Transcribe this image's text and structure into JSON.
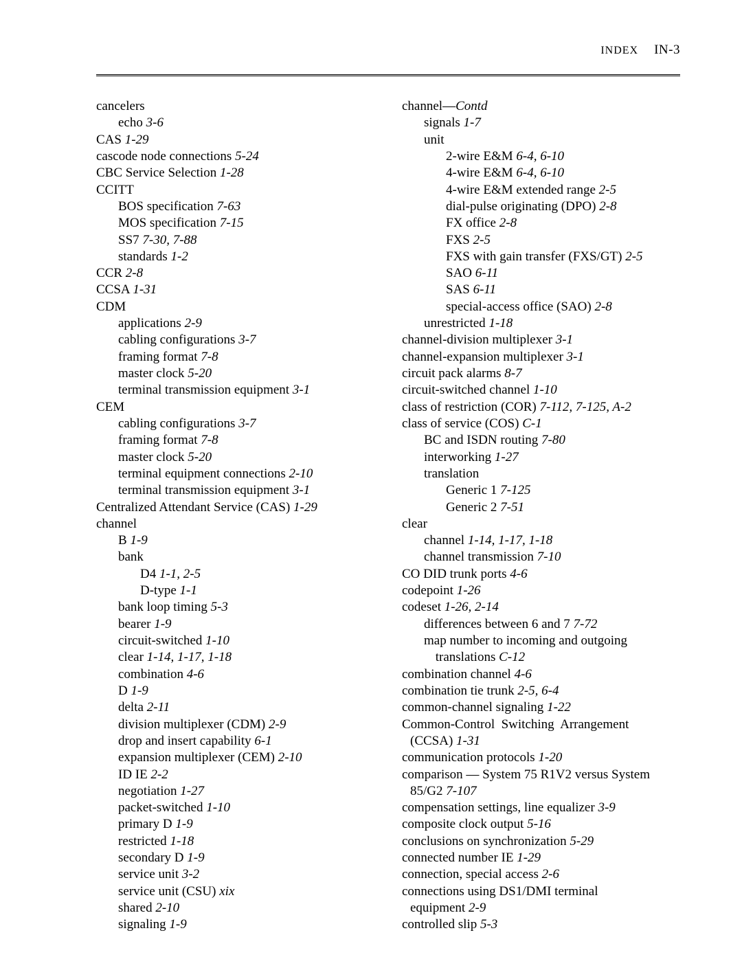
{
  "header": {
    "label": "INDEX",
    "page": "IN-3"
  },
  "left": [
    {
      "i": 0,
      "t": [
        "cancelers"
      ]
    },
    {
      "i": 1,
      "t": [
        "echo ",
        {
          "it": "3-6"
        }
      ]
    },
    {
      "i": 0,
      "t": [
        "CAS ",
        {
          "it": "1-29"
        }
      ]
    },
    {
      "i": 0,
      "t": [
        "cascode node connections ",
        {
          "it": "5-24"
        }
      ]
    },
    {
      "i": 0,
      "t": [
        "CBC Service Selection ",
        {
          "it": "1-28"
        }
      ]
    },
    {
      "i": 0,
      "t": [
        "CCITT"
      ]
    },
    {
      "i": 1,
      "t": [
        "BOS specification ",
        {
          "it": "7-63"
        }
      ]
    },
    {
      "i": 1,
      "t": [
        "MOS specification ",
        {
          "it": "7-15"
        }
      ]
    },
    {
      "i": 1,
      "t": [
        "SS7 ",
        {
          "it": "7-30, 7-88"
        }
      ]
    },
    {
      "i": 1,
      "t": [
        "standards ",
        {
          "it": "1-2"
        }
      ]
    },
    {
      "i": 0,
      "t": [
        "CCR ",
        {
          "it": "2-8"
        }
      ]
    },
    {
      "i": 0,
      "t": [
        "CCSA ",
        {
          "it": "1-31"
        }
      ]
    },
    {
      "i": 0,
      "t": [
        "CDM"
      ]
    },
    {
      "i": 1,
      "t": [
        "applications ",
        {
          "it": "2-9"
        }
      ]
    },
    {
      "i": 1,
      "t": [
        "cabling configurations ",
        {
          "it": "3-7"
        }
      ]
    },
    {
      "i": 1,
      "t": [
        "framing format ",
        {
          "it": "7-8"
        }
      ]
    },
    {
      "i": 1,
      "t": [
        "master clock ",
        {
          "it": "5-20"
        }
      ]
    },
    {
      "i": 1,
      "t": [
        "terminal transmission equipment ",
        {
          "it": "3-1"
        }
      ]
    },
    {
      "i": 0,
      "t": [
        "CEM"
      ]
    },
    {
      "i": 1,
      "t": [
        "cabling configurations ",
        {
          "it": "3-7"
        }
      ]
    },
    {
      "i": 1,
      "t": [
        "framing format ",
        {
          "it": "7-8"
        }
      ]
    },
    {
      "i": 1,
      "t": [
        "master clock ",
        {
          "it": "5-20"
        }
      ]
    },
    {
      "i": 1,
      "t": [
        "terminal equipment connections ",
        {
          "it": "2-10"
        }
      ]
    },
    {
      "i": 1,
      "t": [
        "terminal transmission equipment ",
        {
          "it": "3-1"
        }
      ]
    },
    {
      "i": 0,
      "t": [
        "Centralized Attendant Service (CAS) ",
        {
          "it": "1-29"
        }
      ]
    },
    {
      "i": 0,
      "t": [
        "channel"
      ]
    },
    {
      "i": 1,
      "t": [
        "B ",
        {
          "it": "1-9"
        }
      ]
    },
    {
      "i": 1,
      "t": [
        "bank"
      ]
    },
    {
      "i": 2,
      "t": [
        "D4 ",
        {
          "it": "1-1, 2-5"
        }
      ]
    },
    {
      "i": 2,
      "t": [
        "D-type ",
        {
          "it": "1-1"
        }
      ]
    },
    {
      "i": 1,
      "t": [
        "bank loop timing ",
        {
          "it": "5-3"
        }
      ]
    },
    {
      "i": 1,
      "t": [
        "bearer ",
        {
          "it": "1-9"
        }
      ]
    },
    {
      "i": 1,
      "t": [
        "circuit-switched ",
        {
          "it": "1-10"
        }
      ]
    },
    {
      "i": 1,
      "t": [
        "clear ",
        {
          "it": "1-14, 1-17, 1-18"
        }
      ]
    },
    {
      "i": 1,
      "t": [
        "combination ",
        {
          "it": "4-6"
        }
      ]
    },
    {
      "i": 1,
      "t": [
        "D ",
        {
          "it": "1-9"
        }
      ]
    },
    {
      "i": 1,
      "t": [
        "delta ",
        {
          "it": "2-11"
        }
      ]
    },
    {
      "i": 1,
      "t": [
        "division multiplexer (CDM) ",
        {
          "it": "2-9"
        }
      ]
    },
    {
      "i": 1,
      "t": [
        "drop and insert capability ",
        {
          "it": "6-1"
        }
      ]
    },
    {
      "i": 1,
      "t": [
        "expansion multiplexer (CEM) ",
        {
          "it": "2-10"
        }
      ]
    },
    {
      "i": 1,
      "t": [
        "ID IE ",
        {
          "it": "2-2"
        }
      ]
    },
    {
      "i": 1,
      "t": [
        "negotiation ",
        {
          "it": "1-27"
        }
      ]
    },
    {
      "i": 1,
      "t": [
        "packet-switched ",
        {
          "it": "1-10"
        }
      ]
    },
    {
      "i": 1,
      "t": [
        "primary D ",
        {
          "it": "1-9"
        }
      ]
    },
    {
      "i": 1,
      "t": [
        "restricted ",
        {
          "it": "1-18"
        }
      ]
    },
    {
      "i": 1,
      "t": [
        "secondary D ",
        {
          "it": "1-9"
        }
      ]
    },
    {
      "i": 1,
      "t": [
        "service unit ",
        {
          "it": "3-2"
        }
      ]
    },
    {
      "i": 1,
      "t": [
        "service unit (CSU) ",
        {
          "it": "xix"
        }
      ]
    },
    {
      "i": 1,
      "t": [
        "shared ",
        {
          "it": "2-10"
        }
      ]
    },
    {
      "i": 1,
      "t": [
        "signaling ",
        {
          "it": "1-9"
        }
      ]
    }
  ],
  "right": [
    {
      "i": 0,
      "t": [
        "channel—",
        {
          "it": "Contd"
        }
      ]
    },
    {
      "i": 1,
      "t": [
        "signals ",
        {
          "it": "1-7"
        }
      ]
    },
    {
      "i": 1,
      "t": [
        "unit"
      ]
    },
    {
      "i": 2,
      "t": [
        "2-wire E&M ",
        {
          "it": "6-4, 6-10"
        }
      ]
    },
    {
      "i": 2,
      "t": [
        "4-wire E&M ",
        {
          "it": "6-4, 6-10"
        }
      ]
    },
    {
      "i": 2,
      "t": [
        "4-wire E&M extended range ",
        {
          "it": "2-5"
        }
      ]
    },
    {
      "i": 2,
      "t": [
        "dial-pulse originating (DPO) ",
        {
          "it": "2-8"
        }
      ]
    },
    {
      "i": 2,
      "t": [
        "FX office ",
        {
          "it": "2-8"
        }
      ]
    },
    {
      "i": 2,
      "t": [
        "FXS ",
        {
          "it": "2-5"
        }
      ]
    },
    {
      "i": 2,
      "t": [
        "FXS with gain transfer (FXS/GT) ",
        {
          "it": "2-5"
        }
      ]
    },
    {
      "i": 2,
      "t": [
        "SAO ",
        {
          "it": "6-11"
        }
      ]
    },
    {
      "i": 2,
      "t": [
        "SAS ",
        {
          "it": "6-11"
        }
      ]
    },
    {
      "i": 2,
      "t": [
        "special-access office (SAO) ",
        {
          "it": "2-8"
        }
      ]
    },
    {
      "i": 1,
      "t": [
        "unrestricted ",
        {
          "it": "1-18"
        }
      ]
    },
    {
      "i": 0,
      "t": [
        "channel-division multiplexer ",
        {
          "it": "3-1"
        }
      ]
    },
    {
      "i": 0,
      "t": [
        "channel-expansion multiplexer ",
        {
          "it": "3-1"
        }
      ]
    },
    {
      "i": 0,
      "t": [
        "circuit pack alarms ",
        {
          "it": "8-7"
        }
      ]
    },
    {
      "i": 0,
      "t": [
        "circuit-switched channel ",
        {
          "it": "1-10"
        }
      ]
    },
    {
      "i": 0,
      "t": [
        "class of restriction (COR) ",
        {
          "it": "7-112, 7-125, A-2"
        }
      ]
    },
    {
      "i": 0,
      "t": [
        "class of service (COS) ",
        {
          "it": "C-1"
        }
      ]
    },
    {
      "i": 1,
      "t": [
        "BC and ISDN routing ",
        {
          "it": "7-80"
        }
      ]
    },
    {
      "i": 1,
      "t": [
        "interworking ",
        {
          "it": "1-27"
        }
      ]
    },
    {
      "i": 1,
      "t": [
        "translation"
      ]
    },
    {
      "i": 2,
      "t": [
        "Generic 1 ",
        {
          "it": "7-125"
        }
      ]
    },
    {
      "i": 2,
      "t": [
        "Generic 2 ",
        {
          "it": "7-51"
        }
      ]
    },
    {
      "i": 0,
      "t": [
        "clear"
      ]
    },
    {
      "i": 1,
      "t": [
        "channel ",
        {
          "it": "1-14, 1-17, 1-18"
        }
      ]
    },
    {
      "i": 1,
      "t": [
        "channel transmission ",
        {
          "it": "7-10"
        }
      ]
    },
    {
      "i": 0,
      "t": [
        "CO DID trunk ports ",
        {
          "it": "4-6"
        }
      ]
    },
    {
      "i": 0,
      "t": [
        "codepoint ",
        {
          "it": "1-26"
        }
      ]
    },
    {
      "i": 0,
      "t": [
        "codeset ",
        {
          "it": "1-26, 2-14"
        }
      ]
    },
    {
      "i": 1,
      "t": [
        "differences between 6 and 7 ",
        {
          "it": "7-72"
        }
      ]
    },
    {
      "i": 1,
      "t": [
        "map number to incoming and outgoing"
      ]
    },
    {
      "i": 1,
      "cont": true,
      "t": [
        " translations ",
        {
          "it": "C-12"
        }
      ]
    },
    {
      "i": 0,
      "t": [
        "combination channel ",
        {
          "it": "4-6"
        }
      ]
    },
    {
      "i": 0,
      "t": [
        "combination tie trunk ",
        {
          "it": "2-5, 6-4"
        }
      ]
    },
    {
      "i": 0,
      "t": [
        "common-channel signaling ",
        {
          "it": "1-22"
        }
      ]
    },
    {
      "i": 0,
      "t": [
        "Common-Control  Switching  Arrangement"
      ]
    },
    {
      "i": 0,
      "cont": true,
      "t": [
        "(CCSA) ",
        {
          "it": "1-31"
        }
      ]
    },
    {
      "i": 0,
      "t": [
        "communication protocols ",
        {
          "it": "1-20"
        }
      ]
    },
    {
      "i": 0,
      "t": [
        "comparison — System 75 R1V2 versus System"
      ]
    },
    {
      "i": 0,
      "cont": true,
      "t": [
        "85/G2 ",
        {
          "it": "7-107"
        }
      ]
    },
    {
      "i": 0,
      "t": [
        "compensation settings, line equalizer ",
        {
          "it": "3-9"
        }
      ]
    },
    {
      "i": 0,
      "t": [
        "composite clock output ",
        {
          "it": "5-16"
        }
      ]
    },
    {
      "i": 0,
      "t": [
        "conclusions on synchronization ",
        {
          "it": "5-29"
        }
      ]
    },
    {
      "i": 0,
      "t": [
        "connected number IE ",
        {
          "it": "1-29"
        }
      ]
    },
    {
      "i": 0,
      "t": [
        "connection, special access ",
        {
          "it": "2-6"
        }
      ]
    },
    {
      "i": 0,
      "t": [
        "connections using DS1/DMI terminal"
      ]
    },
    {
      "i": 0,
      "cont": true,
      "t": [
        "equipment ",
        {
          "it": "2-9"
        }
      ]
    },
    {
      "i": 0,
      "t": [
        "controlled slip ",
        {
          "it": "5-3"
        }
      ]
    }
  ]
}
